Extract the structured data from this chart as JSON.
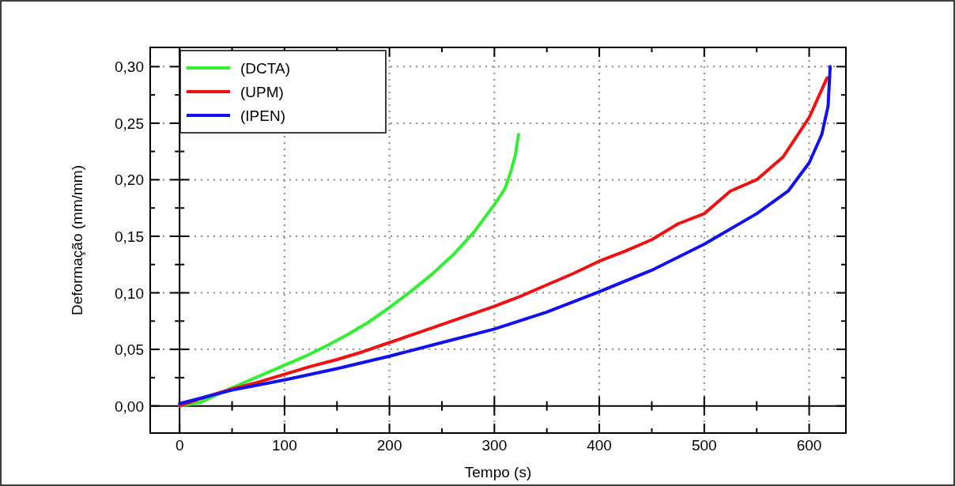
{
  "chart_data": {
    "type": "line",
    "xlabel": "Tempo (s)",
    "ylabel": "Deformação (mm/mm)",
    "xlim": [
      -28,
      635
    ],
    "ylim": [
      -0.024,
      0.317
    ],
    "xticks": [
      0,
      {
        "value": 50,
        "label": null
      },
      100,
      {
        "value": 150,
        "label": null
      },
      200,
      {
        "value": 250,
        "label": null
      },
      300,
      {
        "value": 350,
        "label": null
      },
      400,
      {
        "value": 450,
        "label": null
      },
      500,
      {
        "value": 550,
        "label": null
      },
      600
    ],
    "yticks": [
      {
        "value": 0,
        "label": "0,00"
      },
      {
        "value": 0.025,
        "label": null
      },
      {
        "value": 0.05,
        "label": "0,05"
      },
      {
        "value": 0.075,
        "label": null
      },
      {
        "value": 0.1,
        "label": "0,10"
      },
      {
        "value": 0.125,
        "label": null
      },
      {
        "value": 0.15,
        "label": "0,15"
      },
      {
        "value": 0.175,
        "label": null
      },
      {
        "value": 0.2,
        "label": "0,20"
      },
      {
        "value": 0.225,
        "label": null
      },
      {
        "value": 0.25,
        "label": "0,25"
      },
      {
        "value": 0.275,
        "label": null
      },
      {
        "value": 0.3,
        "label": "0,30"
      }
    ],
    "grid": true,
    "legend": "top left",
    "marker": "none",
    "line_style": "solid",
    "series": [
      {
        "name": "(DCTA)",
        "color": "#33ee33",
        "x": [
          0,
          20,
          40,
          60,
          80,
          100,
          120,
          140,
          160,
          180,
          200,
          220,
          240,
          260,
          280,
          300,
          310,
          315,
          320,
          323
        ],
        "values": [
          0,
          0.003,
          0.012,
          0.02,
          0.028,
          0.036,
          0.044,
          0.053,
          0.063,
          0.074,
          0.087,
          0.101,
          0.116,
          0.133,
          0.153,
          0.178,
          0.192,
          0.205,
          0.222,
          0.24
        ]
      },
      {
        "name": "(UPM)",
        "color": "#ee1111",
        "x": [
          0,
          25,
          50,
          75,
          100,
          125,
          150,
          175,
          200,
          225,
          250,
          275,
          300,
          325,
          350,
          375,
          400,
          425,
          450,
          475,
          500,
          525,
          550,
          575,
          600,
          617
        ],
        "values": [
          0,
          0.008,
          0.015,
          0.021,
          0.028,
          0.035,
          0.041,
          0.048,
          0.056,
          0.064,
          0.072,
          0.08,
          0.088,
          0.097,
          0.107,
          0.117,
          0.128,
          0.137,
          0.147,
          0.161,
          0.17,
          0.19,
          0.2,
          0.22,
          0.255,
          0.29
        ]
      },
      {
        "name": "(IPEN)",
        "color": "#1111ee",
        "x": [
          0,
          50,
          100,
          150,
          200,
          250,
          300,
          350,
          400,
          450,
          500,
          550,
          580,
          600,
          612,
          618,
          620
        ],
        "values": [
          0.002,
          0.014,
          0.023,
          0.033,
          0.044,
          0.056,
          0.068,
          0.083,
          0.101,
          0.12,
          0.143,
          0.17,
          0.19,
          0.215,
          0.24,
          0.265,
          0.3
        ]
      }
    ]
  }
}
